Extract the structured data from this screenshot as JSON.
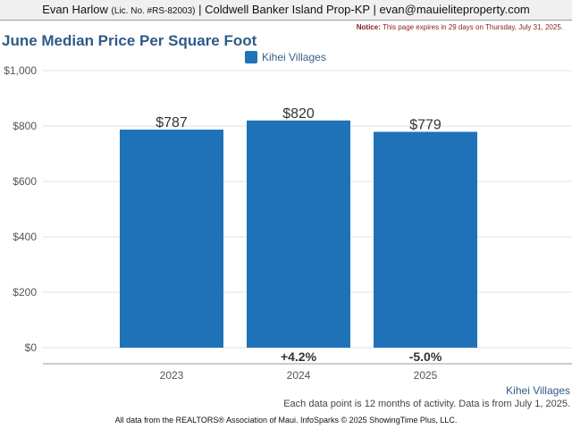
{
  "header": {
    "agent_name": "Evan Harlow",
    "license": "(Lic. No. #RS-82003)",
    "brokerage": "Coldwell Banker Island Prop-KP",
    "email": "evan@mauieliteproperty.com",
    "sep1": " | ",
    "sep2": " | "
  },
  "notice": {
    "label": "Notice:",
    "text": " This page expires in 29 days on Thursday, July 31, 2025."
  },
  "footer": {
    "series_label": "Kihei Villages",
    "note": "Each data point is 12 months of activity. Data is from July 1, 2025.",
    "source": "All data from the REALTORS® Association of Maui. InfoSparks © 2025 ShowingTime Plus, LLC."
  },
  "colors": {
    "bar": "#1f72b8",
    "grid": "#e0e0e0",
    "axis": "#999999",
    "tick_text": "#555555",
    "value_text": "#333333",
    "change_text": "#333333"
  },
  "chart_data": {
    "type": "bar",
    "title": "June Median Price Per Square Foot",
    "categories": [
      "2023",
      "2024",
      "2025"
    ],
    "series": [
      {
        "name": "Kihei Villages",
        "values": [
          787,
          820,
          779
        ]
      }
    ],
    "value_labels": [
      "$787",
      "$820",
      "$779"
    ],
    "change_labels": [
      "",
      "+4.2%",
      "-5.0%"
    ],
    "ylim": [
      0,
      1000
    ],
    "yticks": [
      0,
      200,
      400,
      600,
      800,
      1000
    ],
    "ytick_labels": [
      "$0",
      "$200",
      "$400",
      "$600",
      "$800",
      "$1,000"
    ],
    "grid": true,
    "legend_position": "top-center"
  }
}
